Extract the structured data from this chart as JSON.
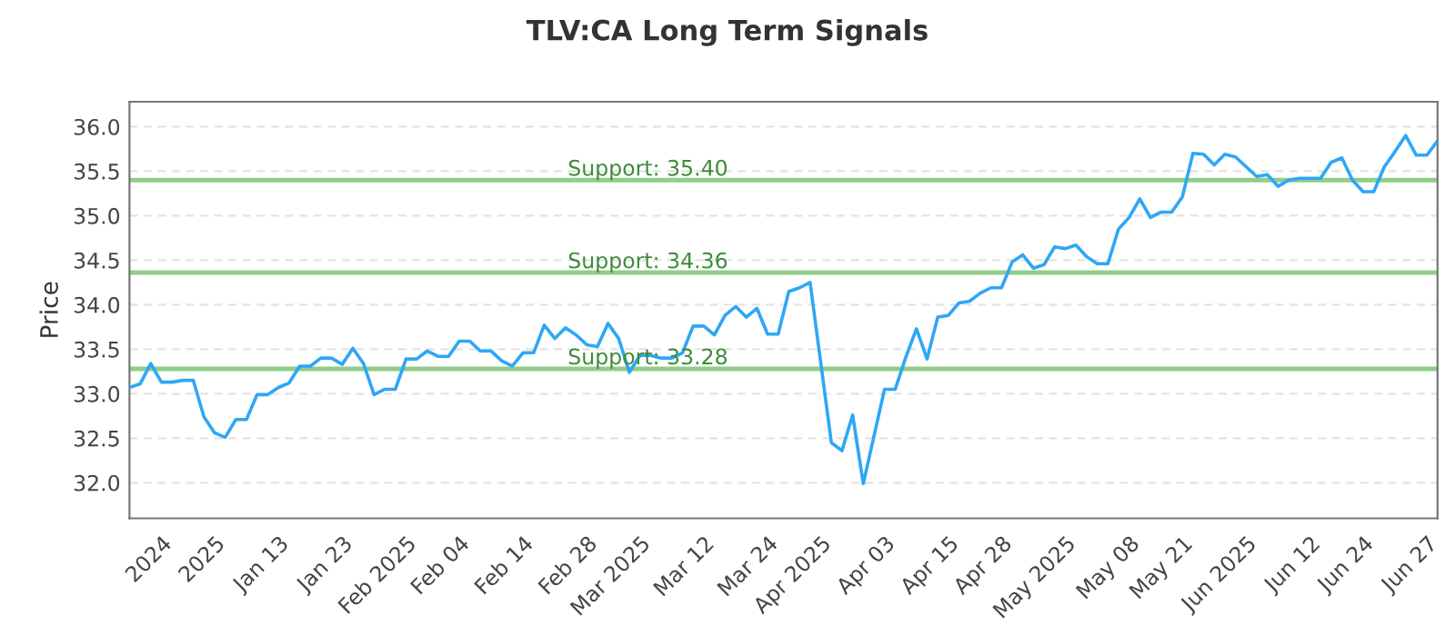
{
  "chart_data": {
    "type": "line",
    "title": "TLV:CA Long Term Signals",
    "ylabel": "Price",
    "categories": [
      null,
      null,
      null,
      "2024",
      null,
      null,
      null,
      null,
      "2025",
      null,
      null,
      null,
      null,
      null,
      "Jan 13",
      null,
      null,
      null,
      null,
      null,
      "Jan 23",
      null,
      null,
      null,
      null,
      null,
      "Feb 2025",
      null,
      null,
      null,
      null,
      "Feb 04",
      null,
      null,
      null,
      null,
      null,
      "Feb 14",
      null,
      null,
      null,
      null,
      null,
      "Feb 28",
      null,
      null,
      null,
      null,
      "Mar 2025",
      null,
      null,
      null,
      null,
      null,
      "Mar 12",
      null,
      null,
      null,
      null,
      null,
      "Mar 24",
      null,
      null,
      null,
      null,
      "Apr 2025",
      null,
      null,
      null,
      null,
      null,
      "Apr 03",
      null,
      null,
      null,
      null,
      null,
      "Apr 15",
      null,
      null,
      null,
      null,
      "Apr 28",
      null,
      null,
      null,
      null,
      null,
      "May 2025",
      null,
      null,
      null,
      null,
      null,
      "May 08",
      null,
      null,
      null,
      null,
      "May 21",
      null,
      null,
      null,
      null,
      null,
      "Jun 2025",
      null,
      null,
      null,
      null,
      null,
      "Jun 12",
      null,
      null,
      null,
      null,
      "Jun 24",
      null,
      null,
      null,
      null,
      null,
      "Jun 27",
      null
    ],
    "series": [
      {
        "color": "#2ea7f5",
        "values": [
          33.07,
          33.11,
          33.34,
          33.13,
          33.13,
          33.15,
          33.15,
          32.74,
          32.56,
          32.51,
          32.71,
          32.71,
          32.99,
          32.99,
          33.07,
          33.12,
          33.31,
          33.31,
          33.4,
          33.4,
          33.33,
          33.51,
          33.34,
          32.99,
          33.05,
          33.05,
          33.39,
          33.39,
          33.48,
          33.42,
          33.42,
          33.59,
          33.59,
          33.48,
          33.48,
          33.37,
          33.31,
          33.46,
          33.46,
          33.77,
          33.62,
          33.74,
          33.66,
          33.55,
          33.53,
          33.79,
          33.62,
          33.24,
          33.43,
          33.43,
          33.4,
          33.4,
          33.46,
          33.76,
          33.76,
          33.66,
          33.88,
          33.98,
          33.86,
          33.96,
          33.67,
          33.67,
          34.15,
          34.19,
          34.25,
          33.35,
          32.45,
          32.36,
          32.76,
          31.99,
          32.52,
          33.05,
          33.05,
          33.41,
          33.73,
          33.39,
          33.86,
          33.88,
          34.02,
          34.04,
          34.13,
          34.19,
          34.19,
          34.48,
          34.56,
          34.41,
          34.45,
          34.65,
          34.63,
          34.67,
          34.54,
          34.46,
          34.46,
          34.85,
          34.98,
          35.19,
          34.98,
          35.04,
          35.04,
          35.21,
          35.7,
          35.69,
          35.57,
          35.69,
          35.66,
          35.55,
          35.44,
          35.46,
          35.33,
          35.4,
          35.42,
          35.42,
          35.42,
          35.6,
          35.65,
          35.4,
          35.27,
          35.27,
          35.55,
          35.72,
          35.9,
          35.68,
          35.68,
          35.84
        ]
      }
    ],
    "ylim": [
      31.6,
      36.28
    ],
    "yticks": [
      {
        "value": 32,
        "label": "32.0"
      },
      {
        "value": 32.5,
        "label": "32.5"
      },
      {
        "value": 33,
        "label": "33.0"
      },
      {
        "value": 33.5,
        "label": "33.5"
      },
      {
        "value": 34,
        "label": "34.0"
      },
      {
        "value": 34.5,
        "label": "34.5"
      },
      {
        "value": 35,
        "label": "35.0"
      },
      {
        "value": 35.5,
        "label": "35.5"
      },
      {
        "value": 36,
        "label": "36.0"
      }
    ],
    "grid": "y",
    "marker": "none",
    "line_style": "solid",
    "ref_lines": [
      {
        "axis": "y",
        "value": 35.4,
        "label": "Support: 35.40",
        "color": "#8fce87"
      },
      {
        "axis": "y",
        "value": 34.36,
        "label": "Support: 34.36",
        "color": "#8fce87"
      },
      {
        "axis": "y",
        "value": 33.28,
        "label": "Support: 33.28",
        "color": "#8fce87"
      }
    ]
  }
}
